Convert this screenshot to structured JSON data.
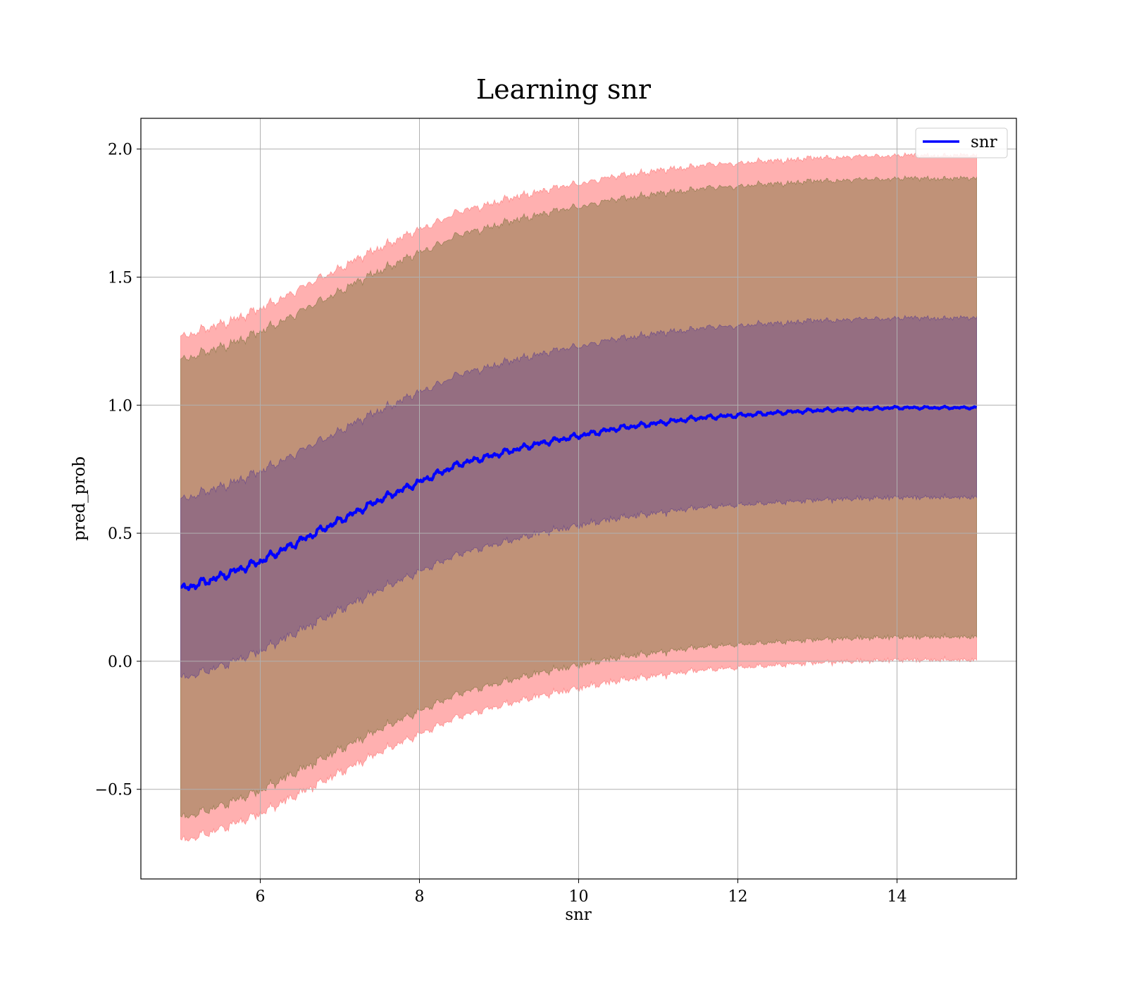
{
  "chart_data": {
    "type": "line",
    "title": "Learning snr",
    "xlabel": "snr",
    "ylabel": "pred_prob",
    "xlim": [
      4.5,
      15.5
    ],
    "ylim": [
      -0.85,
      2.12
    ],
    "x_ticks": [
      6,
      8,
      10,
      12,
      14
    ],
    "x_tick_labels": [
      "6",
      "8",
      "10",
      "12",
      "14"
    ],
    "y_ticks": [
      -0.5,
      0.0,
      0.5,
      1.0,
      1.5,
      2.0
    ],
    "y_tick_labels": [
      "−0.5",
      "0.0",
      "0.5",
      "1.0",
      "1.5",
      "2.0"
    ],
    "grid": true,
    "legend": {
      "position": "top-right",
      "entries": [
        "snr"
      ]
    },
    "colors": {
      "line": "#0000ff",
      "band_outer": "#ff7f7f",
      "band_middle": "#8c7a4a",
      "band_inner": "#6a4a8a",
      "grid": "#b0b0b0"
    },
    "band_opacity": {
      "outer": 0.62,
      "middle": 0.55,
      "inner": 0.5
    },
    "band_half_widths": {
      "outer": 0.985,
      "middle": 0.895,
      "inner": 0.35
    },
    "series": [
      {
        "name": "snr",
        "x": [
          5.0,
          5.5,
          6.0,
          6.5,
          7.0,
          7.5,
          8.0,
          8.5,
          9.0,
          9.5,
          10.0,
          10.5,
          11.0,
          11.5,
          12.0,
          12.5,
          13.0,
          13.5,
          14.0,
          14.5,
          15.0
        ],
        "y": [
          0.28,
          0.33,
          0.39,
          0.47,
          0.55,
          0.63,
          0.7,
          0.77,
          0.81,
          0.85,
          0.88,
          0.91,
          0.93,
          0.95,
          0.96,
          0.97,
          0.98,
          0.985,
          0.99,
          0.99,
          0.99
        ]
      }
    ]
  }
}
